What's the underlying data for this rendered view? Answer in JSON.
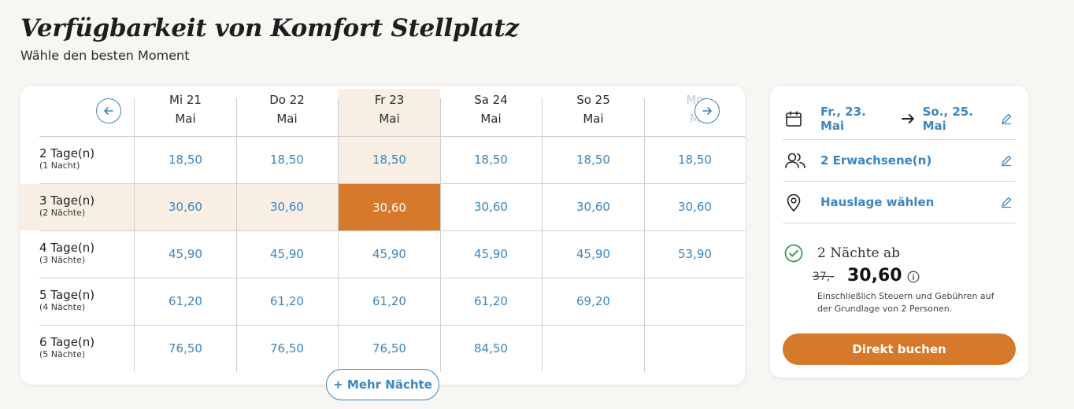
{
  "page": {
    "title": "Verfügbarkeit von Komfort Stellplatz",
    "subtitle": "Wähle den besten Moment"
  },
  "calendar": {
    "days": [
      {
        "line1": "Mi 21",
        "line2": "Mai"
      },
      {
        "line1": "Do 22",
        "line2": "Mai"
      },
      {
        "line1": "Fr 23",
        "line2": "Mai"
      },
      {
        "line1": "Sa 24",
        "line2": "Mai"
      },
      {
        "line1": "So 25",
        "line2": "Mai"
      },
      {
        "line1": "Mo",
        "line2": "M"
      }
    ],
    "rows": [
      {
        "label": "2 Tage(n)",
        "sub": "(1 Nacht)",
        "prices": [
          "18,50",
          "18,50",
          "18,50",
          "18,50",
          "18,50",
          "18,50"
        ]
      },
      {
        "label": "3 Tage(n)",
        "sub": "(2 Nächte)",
        "prices": [
          "30,60",
          "30,60",
          "30,60",
          "30,60",
          "30,60",
          "30,60"
        ]
      },
      {
        "label": "4 Tage(n)",
        "sub": "(3 Nächte)",
        "prices": [
          "45,90",
          "45,90",
          "45,90",
          "45,90",
          "45,90",
          "53,90"
        ]
      },
      {
        "label": "5 Tage(n)",
        "sub": "(4 Nächte)",
        "prices": [
          "61,20",
          "61,20",
          "61,20",
          "61,20",
          "69,20",
          ""
        ]
      },
      {
        "label": "6 Tage(n)",
        "sub": "(5 Nächte)",
        "prices": [
          "76,50",
          "76,50",
          "76,50",
          "84,50",
          "",
          ""
        ]
      }
    ],
    "selected_row": 1,
    "selected_col": 2,
    "more_button": "+ Mehr Nächte",
    "prev_icon": "arrow-left-icon",
    "next_icon": "arrow-right-icon"
  },
  "summary": {
    "date_from": "Fr., 23. Mai",
    "date_to": "So., 25. Mai",
    "guests": "2 Erwachsene(n)",
    "location": "Hauslage wählen",
    "nights_from": "2 Nächte ab",
    "old_price": "37,-",
    "price": "30,60",
    "tax_note": "Einschließlich Steuern und Gebühren auf der Grundlage von 2 Personen.",
    "book_button": "Direkt buchen"
  },
  "colors": {
    "accent_orange": "#d6792b",
    "highlight": "#f9eee3",
    "link_blue": "#3b86c0",
    "check_green": "#3d9a5b"
  }
}
